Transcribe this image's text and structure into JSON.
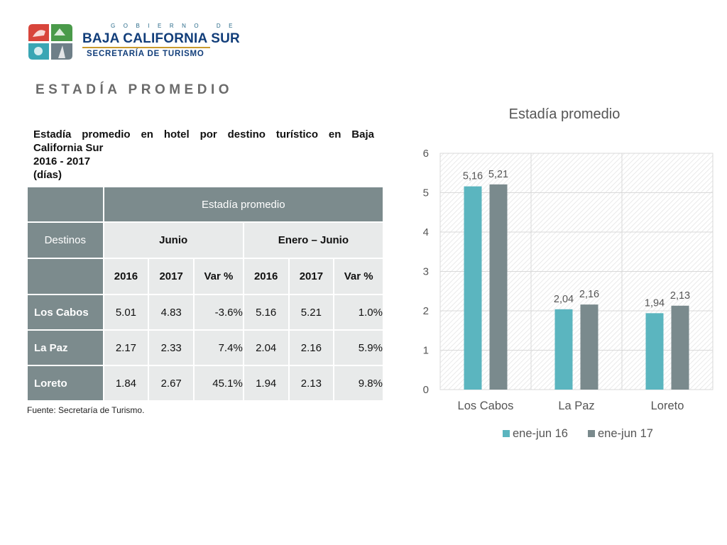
{
  "header": {
    "logo_gov": "GOBIERNO DE",
    "logo_state": "BAJA CALIFORNIA SUR",
    "logo_secretaria": "SECRETARÍA DE TURISMO",
    "logo_colors": {
      "red": "#d8453b",
      "green": "#4a9a4a",
      "teal": "#3aa6b4",
      "navy": "#123e7a",
      "gold": "#c99a2e"
    }
  },
  "section_title": "ESTADÍA PROMEDIO",
  "table": {
    "caption_line1": "Estadía promedio en hotel por destino turístico en Baja",
    "caption_line2": "California Sur",
    "caption_line3": "2016 - 2017",
    "caption_line4": "(días)",
    "group_header": "Estadía promedio",
    "col_destinos": "Destinos",
    "period_1": "Junio",
    "period_2": "Enero – Junio",
    "sub_headers": [
      "2016",
      "2017",
      "Var %",
      "2016",
      "2017",
      "Var %"
    ],
    "rows": [
      {
        "destino": "Los Cabos",
        "jun_2016": "5.01",
        "jun_2017": "4.83",
        "jun_var": "-3.6%",
        "ej_2016": "5.16",
        "ej_2017": "5.21",
        "ej_var": "1.0%"
      },
      {
        "destino": "La Paz",
        "jun_2016": "2.17",
        "jun_2017": "2.33",
        "jun_var": "7.4%",
        "ej_2016": "2.04",
        "ej_2017": "2.16",
        "ej_var": "5.9%"
      },
      {
        "destino": "Loreto",
        "jun_2016": "1.84",
        "jun_2017": "2.67",
        "jun_var": "45.1%",
        "ej_2016": "1.94",
        "ej_2017": "2.13",
        "ej_var": "9.8%"
      }
    ],
    "source": "Fuente: Secretaría  de Turismo.",
    "colors": {
      "header_bg": "#7c8b8d",
      "cell_bg": "#e8eaea"
    }
  },
  "chart_data": {
    "type": "bar",
    "title": "Estadía promedio",
    "categories": [
      "Los Cabos",
      "La Paz",
      "Loreto"
    ],
    "series": [
      {
        "name": "ene-jun 16",
        "values": [
          5.16,
          2.04,
          1.94
        ],
        "labels": [
          "5,16",
          "2,04",
          "1,94"
        ],
        "color": "#5bb5bf"
      },
      {
        "name": "ene-jun 17",
        "values": [
          5.21,
          2.16,
          2.13
        ],
        "labels": [
          "5,21",
          "2,16",
          "2,13"
        ],
        "color": "#7a8a8d"
      }
    ],
    "y_ticks": [
      "0",
      "1",
      "2",
      "3",
      "4",
      "5",
      "6"
    ],
    "ylim": [
      0,
      6
    ],
    "grid": true,
    "legend": "bottom"
  }
}
